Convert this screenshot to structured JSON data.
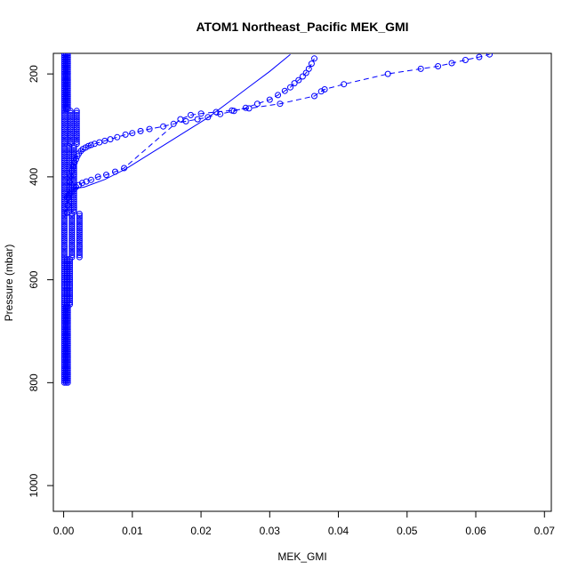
{
  "chart_data": {
    "type": "scatter",
    "title": "ATOM1 Northeast_Pacific MEK_GMI",
    "xlabel": "MEK_GMI",
    "ylabel": "Pressure (mbar)",
    "xlim": [
      -0.0015,
      0.071
    ],
    "ylim": [
      1050,
      160
    ],
    "y_reversed": true,
    "x_ticks": [
      0.0,
      0.01,
      0.02,
      0.03,
      0.04,
      0.05,
      0.06,
      0.07
    ],
    "x_tick_labels": [
      "0.00",
      "0.01",
      "0.02",
      "0.03",
      "0.04",
      "0.05",
      "0.06",
      "0.07"
    ],
    "y_ticks": [
      200,
      400,
      600,
      800,
      1000
    ],
    "y_tick_labels": [
      "200",
      "400",
      "600",
      "800",
      "1000"
    ],
    "color": "#0000ff",
    "grid": false,
    "series": [
      {
        "style": "points-dashed",
        "x": [
          0.0005,
          0.0006,
          0.0007,
          0.0008,
          0.0009,
          0.001,
          0.0012,
          0.0014,
          0.0016,
          0.0018,
          0.002,
          0.0022,
          0.0025,
          0.0028,
          0.0032,
          0.0036,
          0.004,
          0.0045,
          0.0052,
          0.006,
          0.0068,
          0.0078,
          0.009,
          0.01,
          0.0112,
          0.0125,
          0.0145,
          0.016,
          0.0178,
          0.0195,
          0.021,
          0.0228,
          0.0248,
          0.0265,
          0.0282,
          0.03,
          0.0312,
          0.0322,
          0.033,
          0.0336,
          0.0342,
          0.0348,
          0.0353,
          0.0357,
          0.0361,
          0.0365
        ],
        "y": [
          470,
          455,
          440,
          425,
          410,
          398,
          388,
          380,
          372,
          366,
          360,
          355,
          350,
          346,
          343,
          340,
          338,
          336,
          333,
          330,
          327,
          323,
          318,
          315,
          311,
          307,
          302,
          297,
          292,
          288,
          284,
          278,
          272,
          266,
          258,
          250,
          241,
          233,
          226,
          218,
          212,
          205,
          198,
          190,
          180,
          170
        ]
      },
      {
        "style": "points-dashed",
        "x": [
          0.0005,
          0.0007,
          0.0009,
          0.0012,
          0.0015,
          0.0018,
          0.0022,
          0.0027,
          0.0033,
          0.004,
          0.005,
          0.0062,
          0.0075,
          0.0088,
          0.017,
          0.0185,
          0.02,
          0.0222,
          0.0245,
          0.027,
          0.0315,
          0.0365,
          0.0375,
          0.038,
          0.0408,
          0.0472,
          0.052,
          0.0545,
          0.0565,
          0.0585,
          0.0605,
          0.062
        ],
        "y": [
          440,
          436,
          432,
          428,
          424,
          420,
          416,
          412,
          409,
          406,
          400,
          396,
          390,
          383,
          288,
          280,
          277,
          274,
          271,
          267,
          258,
          243,
          234,
          230,
          220,
          200,
          190,
          185,
          179,
          173,
          167,
          162
        ]
      },
      {
        "style": "line",
        "x": [
          0.0005,
          0.003,
          0.006,
          0.009,
          0.012,
          0.015,
          0.018,
          0.021,
          0.024,
          0.027,
          0.03,
          0.033
        ],
        "y": [
          425,
          420,
          405,
          385,
          360,
          335,
          310,
          285,
          255,
          225,
          195,
          162
        ]
      }
    ]
  }
}
